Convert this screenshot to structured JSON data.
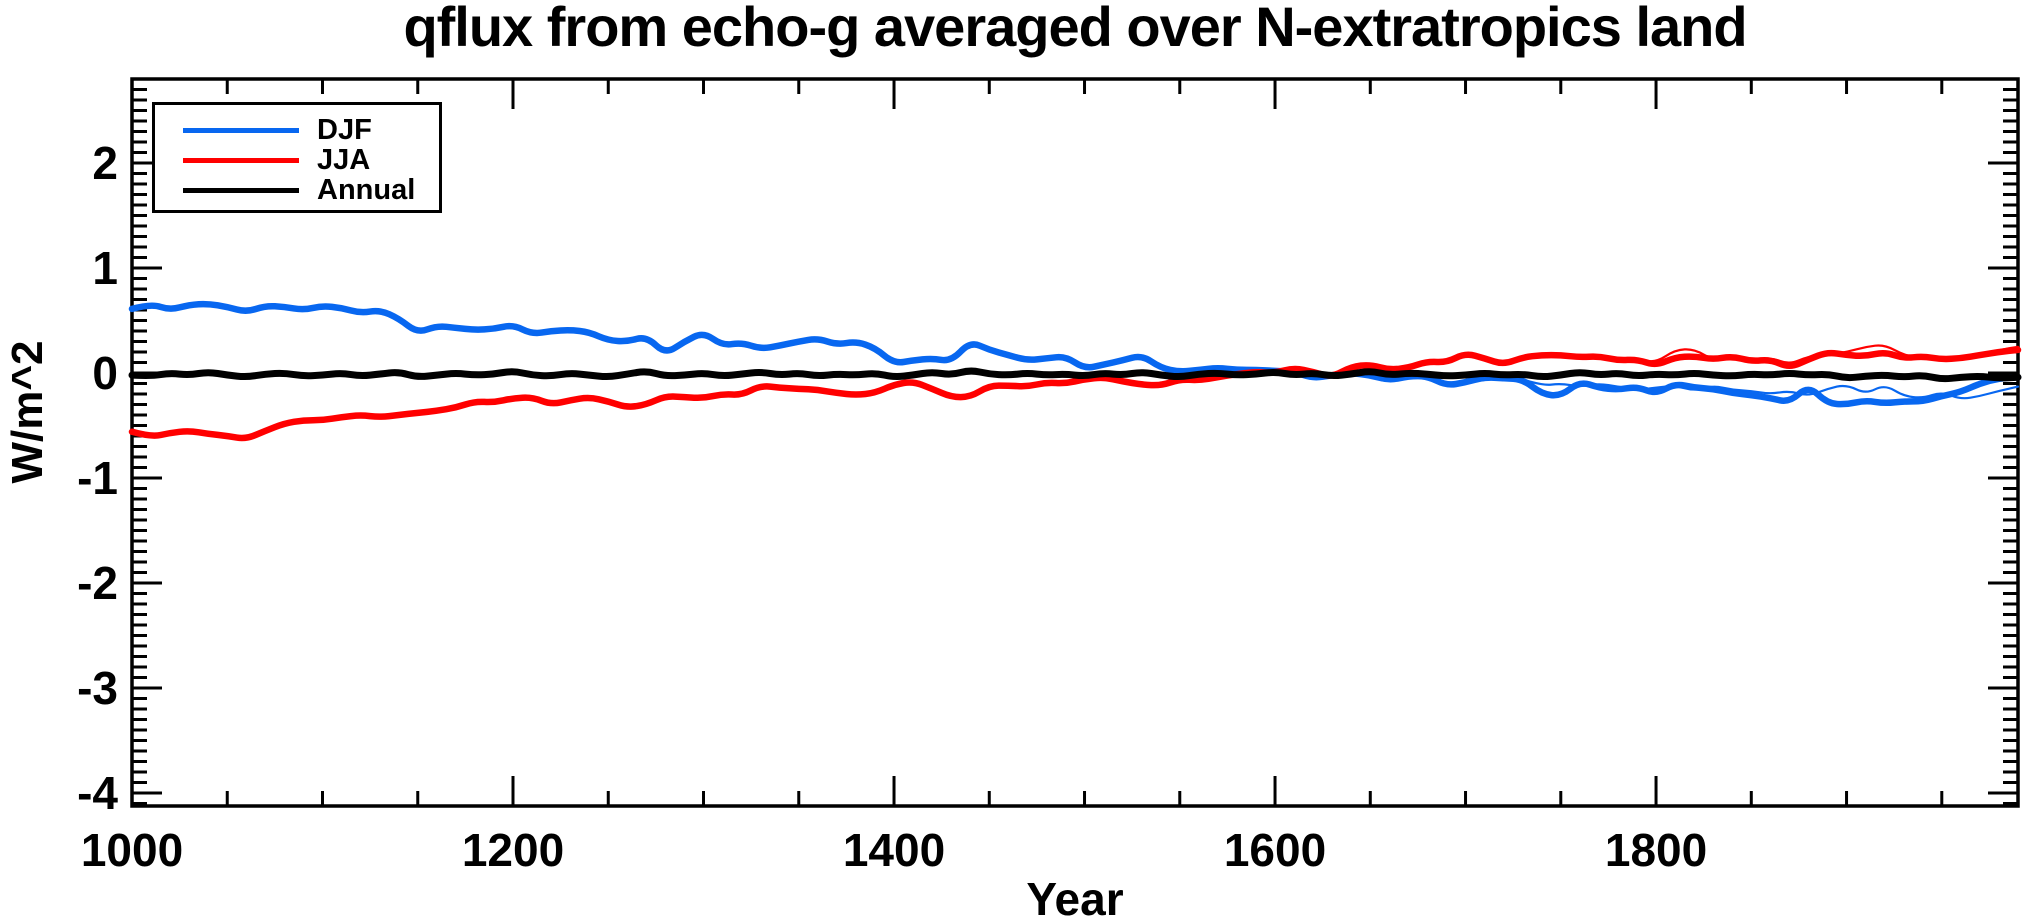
{
  "title": "qflux from echo-g averaged over N-extratropics land",
  "chart_data": {
    "type": "line",
    "title": "qflux from echo-g averaged over N-extratropics land",
    "xlabel": "Year",
    "ylabel": "W/m^2",
    "xlim": [
      1000,
      1990
    ],
    "ylim": [
      -4.12,
      2.8
    ],
    "grid": false,
    "x_axis": {
      "major_ticks": [
        {
          "value": 1000,
          "label": "1000"
        },
        {
          "value": 1200,
          "label": "1200"
        },
        {
          "value": 1400,
          "label": "1400"
        },
        {
          "value": 1600,
          "label": "1600"
        },
        {
          "value": 1800,
          "label": "1800"
        }
      ],
      "minor_interval": 50
    },
    "y_axis": {
      "major_ticks": [
        {
          "value": 2,
          "label": "2"
        },
        {
          "value": 1,
          "label": "1"
        },
        {
          "value": 0,
          "label": "0"
        },
        {
          "value": -1,
          "label": "-1"
        },
        {
          "value": -2,
          "label": "-2"
        },
        {
          "value": -3,
          "label": "-3"
        },
        {
          "value": -4,
          "label": "-4"
        }
      ],
      "minor_interval": 0.1
    },
    "x_start": 1000,
    "x_step": 10,
    "series": [
      {
        "name": "DJF (thin)",
        "color": "#0867F0",
        "width": 2.2,
        "x_start": 1730,
        "values": [
          -0.06,
          -0.12,
          -0.1,
          -0.13,
          -0.1,
          -0.13,
          -0.16,
          -0.14,
          -0.12,
          -0.17,
          -0.12,
          -0.16,
          -0.17,
          -0.2,
          -0.17,
          -0.22,
          -0.15,
          -0.11,
          -0.2,
          -0.11,
          -0.22,
          -0.24,
          -0.18,
          -0.25,
          -0.22,
          -0.17,
          -0.13
        ]
      },
      {
        "name": "JJA (thin)",
        "color": "#FF0000",
        "width": 2.2,
        "x_start": 1780,
        "values": [
          0.12,
          0.13,
          0.1,
          0.22,
          0.23,
          0.12,
          0.17,
          0.1,
          0.15,
          0.08,
          0.16,
          0.17,
          0.2,
          0.25,
          0.27,
          0.17,
          0.14,
          0.15,
          0.12,
          0.16,
          0.22,
          0.25
        ]
      },
      {
        "name": "DJF",
        "color": "#0867F0",
        "width": 6.5,
        "values": [
          0.61,
          0.66,
          0.6,
          0.65,
          0.66,
          0.63,
          0.58,
          0.64,
          0.63,
          0.6,
          0.64,
          0.62,
          0.57,
          0.6,
          0.52,
          0.38,
          0.45,
          0.43,
          0.41,
          0.42,
          0.46,
          0.37,
          0.4,
          0.41,
          0.39,
          0.31,
          0.3,
          0.35,
          0.18,
          0.3,
          0.39,
          0.26,
          0.29,
          0.23,
          0.26,
          0.3,
          0.33,
          0.27,
          0.3,
          0.24,
          0.09,
          0.12,
          0.14,
          0.11,
          0.3,
          0.22,
          0.17,
          0.12,
          0.14,
          0.16,
          0.04,
          0.08,
          0.12,
          0.17,
          0.05,
          0.01,
          0.03,
          0.05,
          0.03,
          0.03,
          0.02,
          0.01,
          -0.05,
          -0.02,
          0.0,
          -0.02,
          -0.07,
          -0.03,
          -0.03,
          -0.12,
          -0.09,
          -0.04,
          -0.05,
          -0.06,
          -0.2,
          -0.22,
          -0.08,
          -0.14,
          -0.16,
          -0.13,
          -0.2,
          -0.1,
          -0.14,
          -0.15,
          -0.19,
          -0.21,
          -0.24,
          -0.28,
          -0.12,
          -0.29,
          -0.3,
          -0.26,
          -0.29,
          -0.27,
          -0.27,
          -0.22,
          -0.18,
          -0.1,
          -0.05,
          -0.04
        ]
      },
      {
        "name": "JJA",
        "color": "#FF0000",
        "width": 6.5,
        "values": [
          -0.56,
          -0.61,
          -0.57,
          -0.55,
          -0.58,
          -0.6,
          -0.63,
          -0.55,
          -0.48,
          -0.45,
          -0.45,
          -0.42,
          -0.4,
          -0.42,
          -0.4,
          -0.38,
          -0.36,
          -0.33,
          -0.27,
          -0.28,
          -0.24,
          -0.23,
          -0.3,
          -0.26,
          -0.23,
          -0.27,
          -0.33,
          -0.3,
          -0.22,
          -0.23,
          -0.24,
          -0.2,
          -0.21,
          -0.12,
          -0.14,
          -0.15,
          -0.16,
          -0.19,
          -0.21,
          -0.19,
          -0.11,
          -0.08,
          -0.15,
          -0.23,
          -0.23,
          -0.12,
          -0.12,
          -0.13,
          -0.09,
          -0.1,
          -0.06,
          -0.04,
          -0.08,
          -0.11,
          -0.12,
          -0.06,
          -0.07,
          -0.04,
          -0.01,
          0.01,
          0.0,
          0.05,
          0.01,
          -0.04,
          0.06,
          0.08,
          0.03,
          0.05,
          0.11,
          0.1,
          0.19,
          0.14,
          0.08,
          0.15,
          0.17,
          0.17,
          0.15,
          0.16,
          0.12,
          0.13,
          0.07,
          0.15,
          0.16,
          0.13,
          0.16,
          0.11,
          0.13,
          0.05,
          0.13,
          0.2,
          0.17,
          0.16,
          0.2,
          0.14,
          0.16,
          0.13,
          0.14,
          0.17,
          0.2,
          0.22
        ]
      },
      {
        "name": "Annual",
        "color": "#000000",
        "width": 7,
        "values": [
          -0.02,
          -0.03,
          0.0,
          -0.02,
          0.01,
          -0.02,
          -0.04,
          -0.01,
          0.0,
          -0.03,
          -0.02,
          0.0,
          -0.03,
          -0.01,
          0.01,
          -0.04,
          -0.02,
          0.0,
          -0.02,
          -0.01,
          0.02,
          -0.02,
          -0.03,
          0.0,
          -0.02,
          -0.04,
          -0.01,
          0.02,
          -0.03,
          -0.02,
          0.0,
          -0.03,
          -0.01,
          0.01,
          -0.02,
          0.0,
          -0.03,
          -0.01,
          -0.02,
          0.0,
          -0.04,
          -0.02,
          0.01,
          -0.02,
          0.03,
          -0.01,
          -0.02,
          0.0,
          -0.02,
          -0.01,
          -0.03,
          0.0,
          -0.02,
          0.01,
          -0.02,
          -0.04,
          -0.01,
          0.0,
          -0.02,
          -0.01,
          0.01,
          -0.02,
          0.0,
          -0.03,
          -0.01,
          0.02,
          -0.02,
          0.0,
          -0.01,
          -0.03,
          -0.02,
          0.0,
          -0.02,
          -0.01,
          -0.04,
          -0.02,
          0.01,
          -0.02,
          0.0,
          -0.03,
          -0.01,
          -0.02,
          0.0,
          -0.02,
          -0.03,
          -0.01,
          -0.02,
          0.0,
          -0.02,
          -0.01,
          -0.05,
          -0.03,
          -0.02,
          -0.04,
          -0.02,
          -0.06,
          -0.04,
          -0.03,
          -0.05,
          -0.04
        ]
      }
    ],
    "legend": {
      "position": "top-left",
      "items": [
        {
          "label": "DJF",
          "color": "#0867F0"
        },
        {
          "label": "JJA",
          "color": "#FF0000"
        },
        {
          "label": "Annual",
          "color": "#000000"
        }
      ]
    }
  }
}
